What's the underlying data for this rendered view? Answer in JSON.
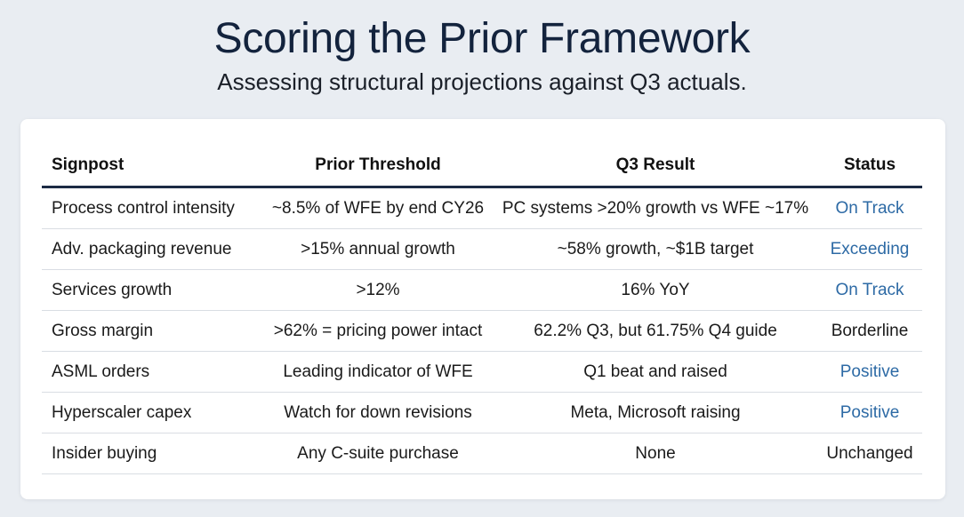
{
  "page": {
    "title": "Scoring the Prior Framework",
    "subtitle": "Assessing structural projections against Q3 actuals."
  },
  "table": {
    "headers": [
      "Signpost",
      "Prior Threshold",
      "Q3 Result",
      "Status"
    ],
    "rows": [
      {
        "signpost": "Process control intensity",
        "threshold": "~8.5% of WFE by end CY26",
        "result": "PC systems >20% growth vs WFE ~17%",
        "status": "On Track",
        "status_color": "#2d6aa5"
      },
      {
        "signpost": "Adv. packaging revenue",
        "threshold": ">15% annual growth",
        "result": "~58% growth, ~$1B target",
        "status": "Exceeding",
        "status_color": "#2d6aa5"
      },
      {
        "signpost": "Services growth",
        "threshold": ">12%",
        "result": "16% YoY",
        "status": "On Track",
        "status_color": "#2d6aa5"
      },
      {
        "signpost": "Gross margin",
        "threshold": ">62% = pricing power intact",
        "result": "62.2% Q3, but 61.75% Q4 guide",
        "status": "Borderline",
        "status_color": "#1a1a1a"
      },
      {
        "signpost": "ASML orders",
        "threshold": "Leading indicator of WFE",
        "result": "Q1 beat and raised",
        "status": "Positive",
        "status_color": "#2d6aa5"
      },
      {
        "signpost": "Hyperscaler capex",
        "threshold": "Watch for down revisions",
        "result": "Meta, Microsoft raising",
        "status": "Positive",
        "status_color": "#2d6aa5"
      },
      {
        "signpost": "Insider buying",
        "threshold": "Any C-suite purchase",
        "result": "None",
        "status": "Unchanged",
        "status_color": "#1a1a1a"
      }
    ]
  }
}
